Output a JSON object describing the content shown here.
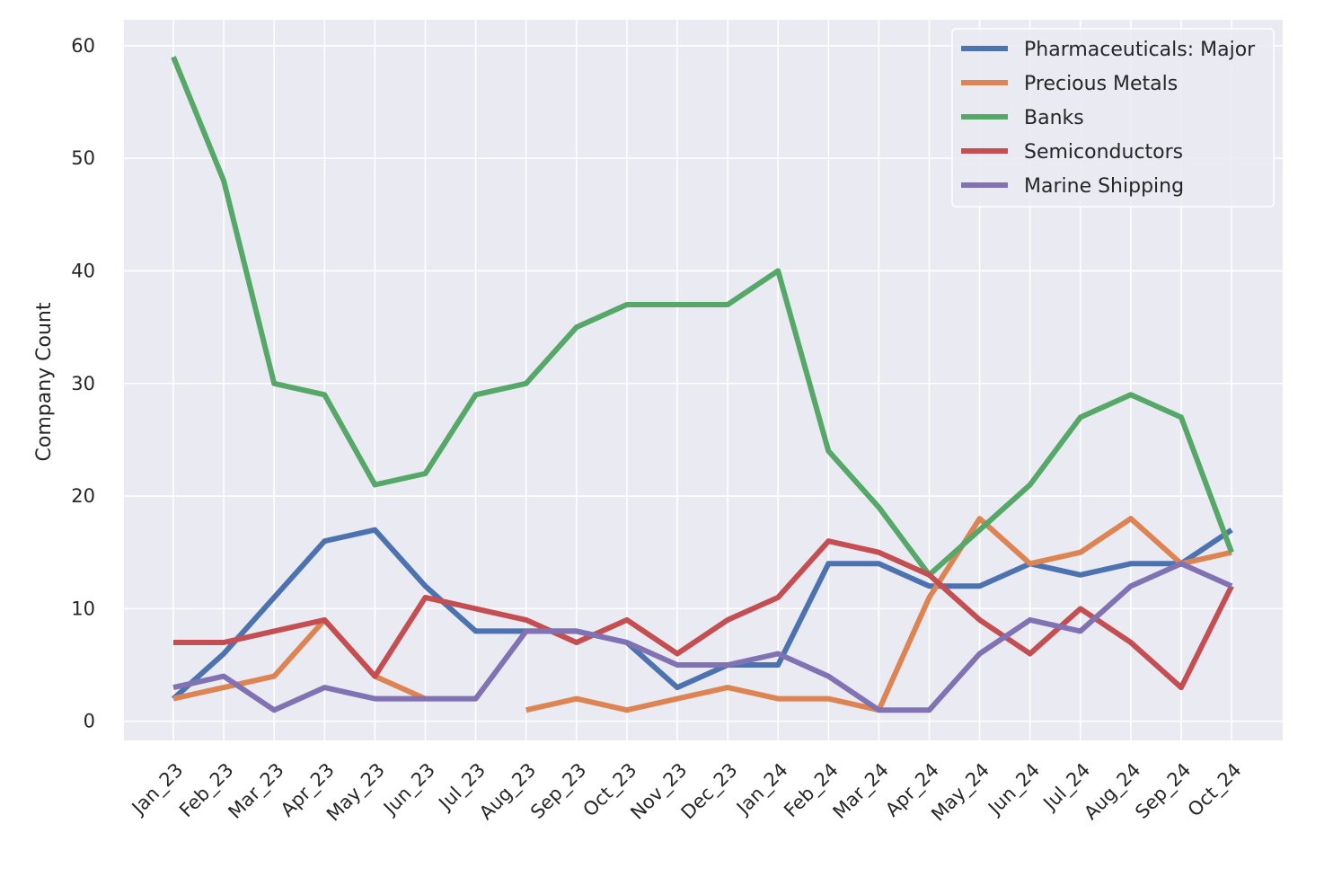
{
  "chart_data": {
    "type": "line",
    "title": "",
    "xlabel": "",
    "ylabel": "Company Count",
    "ylim": [
      -1.7,
      62.3
    ],
    "yticks": [
      0,
      10,
      20,
      30,
      40,
      50,
      60
    ],
    "grid": true,
    "legend_position": "top-right",
    "categories": [
      "Jan_23",
      "Feb_23",
      "Mar_23",
      "Apr_23",
      "May_23",
      "Jun_23",
      "Jul_23",
      "Aug_23",
      "Sep_23",
      "Oct_23",
      "Nov_23",
      "Dec_23",
      "Jan_24",
      "Feb_24",
      "Mar_24",
      "Apr_24",
      "May_24",
      "Jun_24",
      "Jul_24",
      "Aug_24",
      "Sep_24",
      "Oct_24"
    ],
    "series": [
      {
        "name": "Pharmaceuticals: Major",
        "color": "#4c72b0",
        "values": [
          2,
          6,
          11,
          16,
          17,
          12,
          8,
          8,
          8,
          7,
          3,
          5,
          5,
          14,
          14,
          12,
          12,
          14,
          13,
          14,
          14,
          17
        ]
      },
      {
        "name": "Precious Metals",
        "color": "#dd8452",
        "values": [
          2,
          3,
          4,
          9,
          4,
          2,
          null,
          1,
          2,
          1,
          2,
          3,
          2,
          2,
          1,
          11,
          18,
          14,
          15,
          18,
          14,
          15
        ]
      },
      {
        "name": "Banks",
        "color": "#55a868",
        "values": [
          59,
          48,
          30,
          29,
          21,
          22,
          29,
          30,
          35,
          37,
          37,
          37,
          40,
          24,
          19,
          13,
          17,
          21,
          27,
          29,
          27,
          15
        ]
      },
      {
        "name": "Semiconductors",
        "color": "#c44e52",
        "values": [
          7,
          7,
          8,
          9,
          4,
          11,
          10,
          9,
          7,
          9,
          6,
          9,
          11,
          16,
          15,
          13,
          9,
          6,
          10,
          7,
          3,
          12
        ]
      },
      {
        "name": "Marine Shipping",
        "color": "#8172b3",
        "values": [
          3,
          4,
          1,
          3,
          2,
          2,
          2,
          8,
          8,
          7,
          5,
          5,
          6,
          4,
          1,
          1,
          6,
          9,
          8,
          12,
          14,
          12
        ]
      }
    ]
  }
}
